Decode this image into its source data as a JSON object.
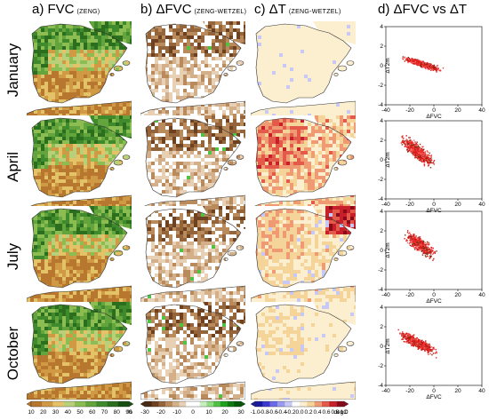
{
  "headers": {
    "a": {
      "main": "a) FVC",
      "sub": "(ZENG)"
    },
    "b": {
      "main": "b) ΔFVC",
      "sub": "(ZENG-WETZEL)"
    },
    "c": {
      "main": "c) ΔT",
      "sub": "(ZENG-WETZEL)"
    },
    "d": {
      "main": "d)    ΔFVC vs ΔT",
      "sub": ""
    }
  },
  "months": [
    "January",
    "April",
    "July",
    "October"
  ],
  "colorbars": {
    "fvc": {
      "ticks": [
        "10",
        "20",
        "30",
        "40",
        "50",
        "60",
        "70",
        "80",
        "90"
      ],
      "unit": "%",
      "colors": [
        "#b8772e",
        "#d09a45",
        "#e4c268",
        "#b8d07a",
        "#8cbd52",
        "#64a43c",
        "#3f8a2c",
        "#2a6e1e",
        "#174f12"
      ]
    },
    "dfvc": {
      "ticks": [
        "-30",
        "-20",
        "-10",
        "0",
        "10",
        "20",
        "30"
      ],
      "colors": [
        "#4a2a10",
        "#6e4220",
        "#94643a",
        "#b88a5c",
        "#d4b08a",
        "#e8d0b4",
        "#ffffff",
        "#ffffff",
        "#c8eec0",
        "#8fdc80",
        "#4fc244",
        "#20a020",
        "#0e7a10",
        "#045a06"
      ]
    },
    "dt": {
      "ticks": [
        "-1.0",
        "-0.8",
        "-0.6",
        "-0.4",
        "-0.2",
        "0.0",
        "0.2",
        "0.4",
        "0.6",
        "0.8",
        "1.0"
      ],
      "unit": "degC",
      "colors": [
        "#1a1aa0",
        "#3a3ad0",
        "#6a6ae6",
        "#9a9af0",
        "#c8c8f6",
        "#ffffff",
        "#fbefd0",
        "#f5d49a",
        "#ef9a72",
        "#e35a4a",
        "#c8202a",
        "#8a0a1a"
      ]
    }
  },
  "scatter": {
    "x_ticks": [
      "-40",
      "-20",
      "0",
      "20",
      "40"
    ],
    "y_ticks": [
      "4",
      "2",
      "0",
      "-2",
      "-4"
    ],
    "xlabel": "ΔFVC",
    "ylabel": "ΔT2m",
    "xlim": [
      -40,
      40
    ],
    "ylim": [
      -4,
      4
    ],
    "panels": [
      {
        "month": "January",
        "center": [
          -10,
          0.2
        ],
        "spread": [
          14,
          0.5
        ],
        "slope": -0.04
      },
      {
        "month": "April",
        "center": [
          -14,
          0.9
        ],
        "spread": [
          12,
          1.3
        ],
        "slope": -0.09
      },
      {
        "month": "July",
        "center": [
          -12,
          0.6
        ],
        "spread": [
          11,
          1.2
        ],
        "slope": -0.08
      },
      {
        "month": "October",
        "center": [
          -14,
          0.4
        ],
        "spread": [
          13,
          0.9
        ],
        "slope": -0.06
      }
    ]
  }
}
